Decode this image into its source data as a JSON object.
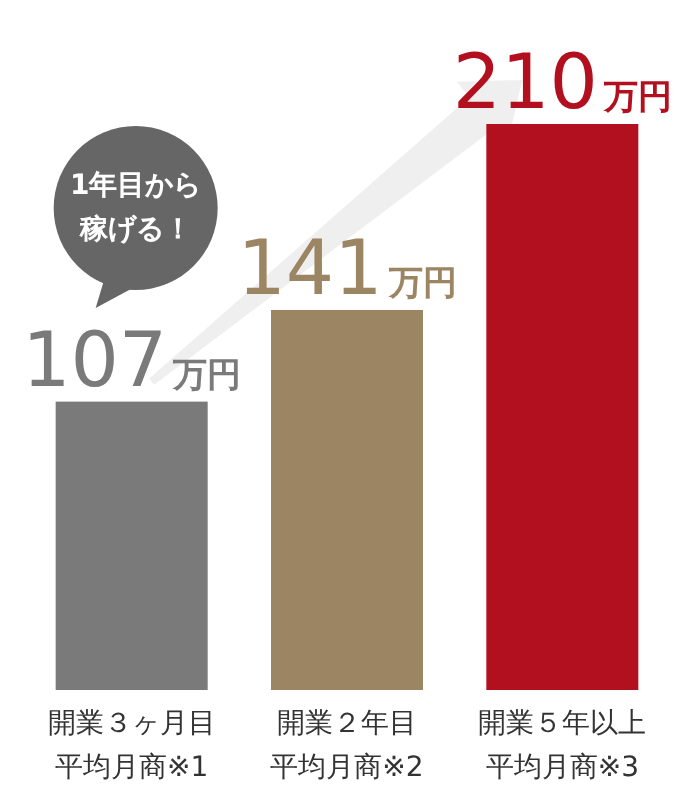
{
  "chart_data": {
    "type": "bar",
    "categories": [
      "開業３ヶ月目平均月商※1",
      "開業２年目平均月商※2",
      "開業５年以上平均月商※3"
    ],
    "values": [
      107,
      141,
      210
    ],
    "colors": [
      "#7a7a7a",
      "#9b8563",
      "#b20f1f"
    ],
    "value_labels": [
      "107万円",
      "141万円",
      "210万円"
    ],
    "annotations": [
      "1年目から稼げる！"
    ]
  }
}
